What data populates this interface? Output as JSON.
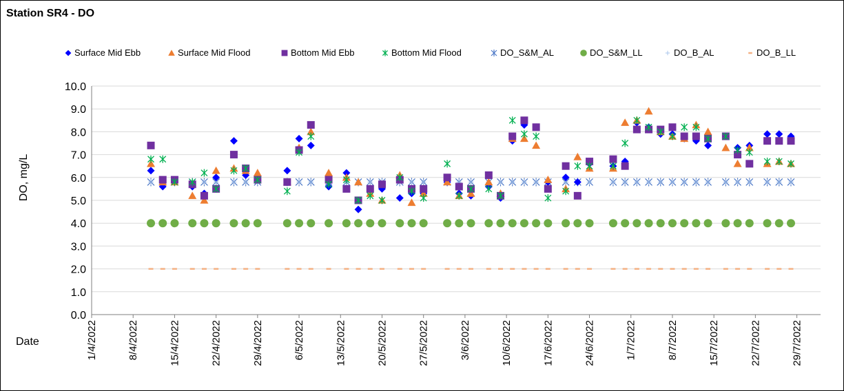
{
  "chart_data": {
    "type": "scatter",
    "title": "Station SR4 - DO",
    "ylabel": "DO, mg/L",
    "xlabel": "Date",
    "ylim": [
      0,
      10
    ],
    "yticks": [
      "0.0",
      "1.0",
      "2.0",
      "3.0",
      "4.0",
      "5.0",
      "6.0",
      "7.0",
      "8.0",
      "9.0",
      "10.0"
    ],
    "xticks": [
      "1/4/2022",
      "8/4/2022",
      "15/4/2022",
      "22/4/2022",
      "29/4/2022",
      "6/5/2022",
      "13/5/2022",
      "20/5/2022",
      "27/5/2022",
      "3/6/2022",
      "10/6/2022",
      "17/6/2022",
      "24/6/2022",
      "1/7/2022",
      "8/7/2022",
      "15/7/2022",
      "22/7/2022",
      "29/7/2022"
    ],
    "xlim": [
      "1/4/2022",
      "2/8/2022"
    ],
    "gridlines": "horizontal",
    "legend_position": "top",
    "sampling_dates": [
      "11/4/2022",
      "13/4/2022",
      "15/4/2022",
      "18/4/2022",
      "20/4/2022",
      "22/4/2022",
      "25/4/2022",
      "27/4/2022",
      "29/4/2022",
      "4/5/2022",
      "6/5/2022",
      "8/5/2022",
      "11/5/2022",
      "14/5/2022",
      "16/5/2022",
      "18/5/2022",
      "20/5/2022",
      "23/5/2022",
      "25/5/2022",
      "27/5/2022",
      "31/5/2022",
      "2/6/2022",
      "4/6/2022",
      "7/6/2022",
      "9/6/2022",
      "11/6/2022",
      "13/6/2022",
      "15/6/2022",
      "17/6/2022",
      "20/6/2022",
      "22/6/2022",
      "24/6/2022",
      "28/6/2022",
      "30/6/2022",
      "2/7/2022",
      "4/7/2022",
      "6/7/2022",
      "8/7/2022",
      "10/7/2022",
      "12/7/2022",
      "14/7/2022",
      "17/7/2022",
      "19/7/2022",
      "21/7/2022",
      "24/7/2022",
      "26/7/2022",
      "28/7/2022"
    ],
    "series": [
      {
        "name": "Surface Mid Ebb",
        "marker": "diamond",
        "color": "#0000FF",
        "values": [
          6.3,
          5.6,
          5.8,
          5.6,
          5.3,
          6.0,
          7.6,
          6.1,
          5.9,
          6.3,
          7.7,
          7.4,
          5.6,
          6.2,
          4.6,
          5.5,
          5.5,
          5.1,
          5.3,
          5.3,
          5.8,
          5.3,
          5.2,
          5.6,
          5.1,
          7.6,
          8.3,
          8.2,
          5.8,
          6.0,
          5.8,
          6.6,
          6.5,
          6.7,
          8.4,
          8.2,
          7.9,
          7.9,
          7.7,
          7.6,
          7.4,
          7.8,
          7.3,
          7.4,
          7.9,
          7.9,
          7.8
        ]
      },
      {
        "name": "Surface Mid Flood",
        "marker": "triangle",
        "color": "#ED7D31",
        "values": [
          6.6,
          5.8,
          5.8,
          5.2,
          5.0,
          6.3,
          6.4,
          6.3,
          6.2,
          5.8,
          7.3,
          8.0,
          6.2,
          6.0,
          5.8,
          5.3,
          5.0,
          6.1,
          4.9,
          5.3,
          5.8,
          5.2,
          5.3,
          5.8,
          5.3,
          7.7,
          7.7,
          7.4,
          5.9,
          5.5,
          6.9,
          6.4,
          6.4,
          8.4,
          8.5,
          8.9,
          8.0,
          7.8,
          7.7,
          8.3,
          8.0,
          7.3,
          6.6,
          7.3,
          6.6,
          6.7,
          6.6
        ]
      },
      {
        "name": "Bottom Mid Ebb",
        "marker": "square",
        "color": "#7030A0",
        "values": [
          7.4,
          5.9,
          5.9,
          5.7,
          5.2,
          5.5,
          7.0,
          6.4,
          5.9,
          5.8,
          7.2,
          8.3,
          5.9,
          5.5,
          5.0,
          5.5,
          5.7,
          5.9,
          5.5,
          5.5,
          6.0,
          5.6,
          5.5,
          6.1,
          5.2,
          7.8,
          8.5,
          8.2,
          5.5,
          6.5,
          5.2,
          6.7,
          6.8,
          6.5,
          8.1,
          8.1,
          8.1,
          8.2,
          7.8,
          7.8,
          7.7,
          7.8,
          7.0,
          6.6,
          7.6,
          7.6,
          7.6
        ]
      },
      {
        "name": "Bottom Mid Flood",
        "marker": "x",
        "color": "#00B050",
        "values": [
          6.8,
          6.8,
          5.8,
          5.8,
          6.2,
          5.5,
          6.3,
          6.4,
          5.9,
          5.4,
          7.1,
          7.8,
          5.7,
          5.9,
          5.0,
          5.2,
          5.0,
          6.0,
          5.4,
          5.1,
          6.6,
          5.2,
          5.5,
          5.5,
          5.2,
          8.5,
          7.9,
          7.8,
          5.1,
          5.4,
          6.5,
          6.5,
          6.5,
          7.5,
          8.5,
          8.2,
          8.0,
          7.8,
          8.2,
          8.2,
          7.7,
          7.8,
          7.2,
          7.1,
          6.7,
          6.7,
          6.6
        ]
      },
      {
        "name": "DO_S&M_AL",
        "marker": "star",
        "color": "#4472C4",
        "value": 5.8
      },
      {
        "name": "DO_S&M_LL",
        "marker": "circle",
        "color": "#70AD47",
        "value": 4.0
      },
      {
        "name": "DO_B_AL",
        "marker": "plus",
        "color": "#A9C4EB",
        "value": 5.8
      },
      {
        "name": "DO_B_LL",
        "marker": "dash",
        "color": "#F4B183",
        "value": 2.0
      }
    ]
  }
}
